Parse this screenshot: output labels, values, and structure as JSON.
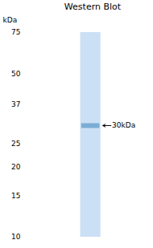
{
  "chart_data": {
    "type": "band",
    "title": "Western Blot",
    "y_label": "kDa",
    "values": [
      30
    ],
    "value_labels": [
      "30kDa"
    ],
    "data_labels": true,
    "color": "#7aadd4",
    "log": "y",
    "ylim": [
      10,
      75
    ],
    "yticks": [
      75,
      50,
      37,
      25,
      20,
      15,
      10
    ],
    "grid": false,
    "tick_labels": "y"
  }
}
